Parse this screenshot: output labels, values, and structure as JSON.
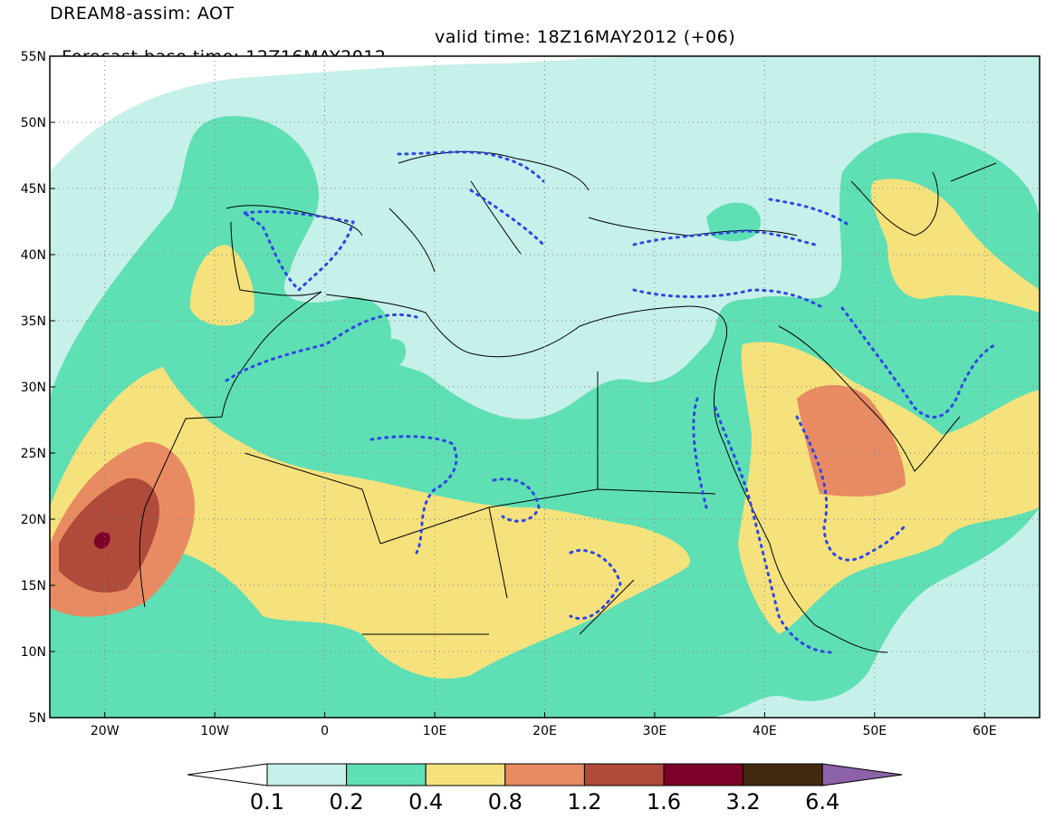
{
  "header": {
    "title": "DREAM8-assim: AOT",
    "base_time": "Forecast base time: 12Z16MAY2012",
    "valid_time": "valid time: 18Z16MAY2012 (+06)"
  },
  "map": {
    "lon_range": [
      -25,
      65
    ],
    "lat_range": [
      5,
      55
    ],
    "lat_ticks": [
      {
        "value": 55,
        "label": "55N"
      },
      {
        "value": 50,
        "label": "50N"
      },
      {
        "value": 45,
        "label": "45N"
      },
      {
        "value": 40,
        "label": "40N"
      },
      {
        "value": 35,
        "label": "35N"
      },
      {
        "value": 30,
        "label": "30N"
      },
      {
        "value": 25,
        "label": "25N"
      },
      {
        "value": 20,
        "label": "20N"
      },
      {
        "value": 15,
        "label": "15N"
      },
      {
        "value": 10,
        "label": "10N"
      },
      {
        "value": 5,
        "label": "5N"
      }
    ],
    "lon_ticks": [
      {
        "value": -20,
        "label": "20W"
      },
      {
        "value": -10,
        "label": "10W"
      },
      {
        "value": 0,
        "label": "0"
      },
      {
        "value": 10,
        "label": "10E"
      },
      {
        "value": 20,
        "label": "20E"
      },
      {
        "value": 30,
        "label": "30E"
      },
      {
        "value": 40,
        "label": "40E"
      },
      {
        "value": 50,
        "label": "50E"
      },
      {
        "value": 60,
        "label": "60E"
      }
    ],
    "gridlines": true
  },
  "colorbar": {
    "labels": [
      "0.1",
      "0.2",
      "0.4",
      "0.8",
      "1.2",
      "1.6",
      "3.2",
      "6.4"
    ],
    "colors": [
      "#ffffff",
      "#c6f0ea",
      "#5fdfb4",
      "#f5e27c",
      "#e98b62",
      "#b04a3a",
      "#7d0028",
      "#442912",
      "#8c62a8"
    ]
  }
}
